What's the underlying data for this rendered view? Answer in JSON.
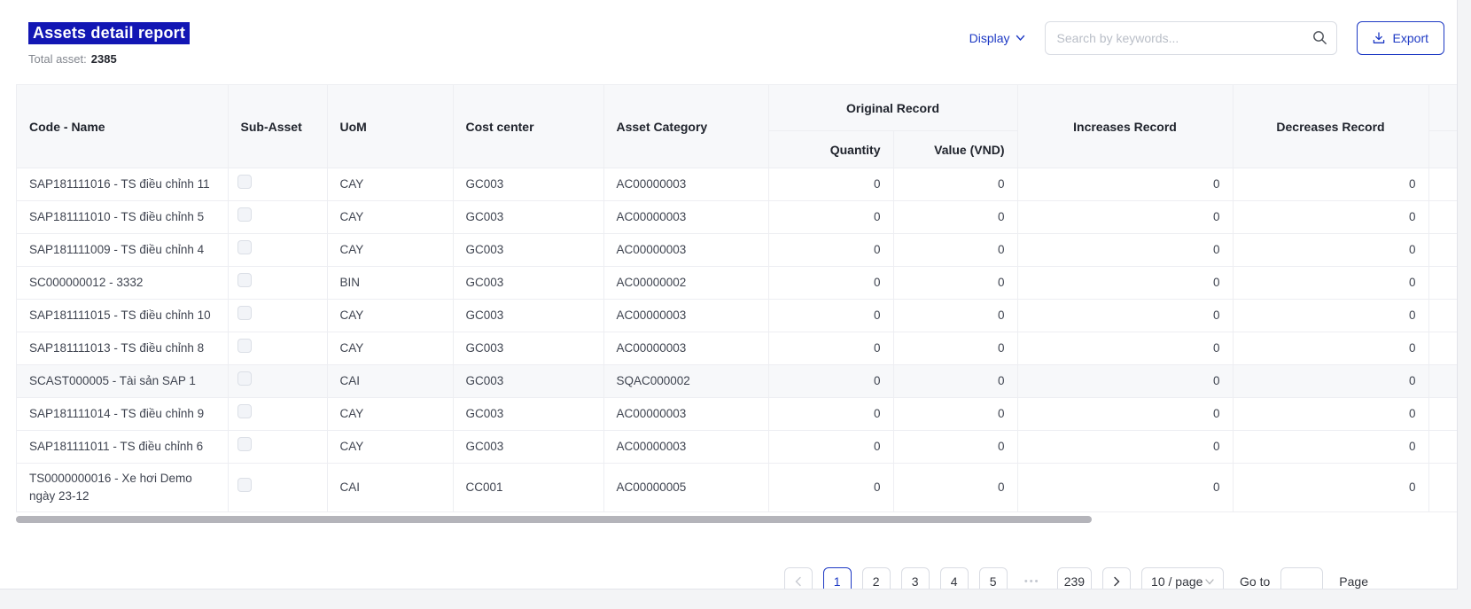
{
  "header": {
    "title": "Assets detail report",
    "total_label": "Total asset:",
    "total_value": "2385",
    "display_label": "Display",
    "search_placeholder": "Search by keywords...",
    "export_label": "Export"
  },
  "colors": {
    "accent": "#1d39c4",
    "title_selection_bg": "#1216b4",
    "table_header_bg": "#f7f8fa",
    "page_bg": "#f3f4f6"
  },
  "table": {
    "headers": {
      "code_name": "Code - Name",
      "sub_asset": "Sub-Asset",
      "uom": "UoM",
      "cost_center": "Cost center",
      "asset_category": "Asset Category",
      "original_record": "Original Record",
      "quantity": "Quantity",
      "value_vnd": "Value (VND)",
      "increases_record": "Increases Record",
      "decreases_record": "Decreases Record"
    },
    "rows": [
      {
        "code_name": "SAP181111016 - TS điều chỉnh 11",
        "sub_asset_checked": false,
        "uom": "CAY",
        "cost_center": "GC003",
        "asset_category": "AC00000003",
        "quantity": "0",
        "value_vnd": "0",
        "increases": "0",
        "decreases": "0",
        "highlighted": false
      },
      {
        "code_name": "SAP181111010 - TS điều chỉnh 5",
        "sub_asset_checked": false,
        "uom": "CAY",
        "cost_center": "GC003",
        "asset_category": "AC00000003",
        "quantity": "0",
        "value_vnd": "0",
        "increases": "0",
        "decreases": "0",
        "highlighted": false
      },
      {
        "code_name": "SAP181111009 - TS điều chỉnh 4",
        "sub_asset_checked": false,
        "uom": "CAY",
        "cost_center": "GC003",
        "asset_category": "AC00000003",
        "quantity": "0",
        "value_vnd": "0",
        "increases": "0",
        "decreases": "0",
        "highlighted": false
      },
      {
        "code_name": "SC000000012 - 3332",
        "sub_asset_checked": false,
        "uom": "BIN",
        "cost_center": "GC003",
        "asset_category": "AC00000002",
        "quantity": "0",
        "value_vnd": "0",
        "increases": "0",
        "decreases": "0",
        "highlighted": false
      },
      {
        "code_name": "SAP181111015 - TS điều chỉnh 10",
        "sub_asset_checked": false,
        "uom": "CAY",
        "cost_center": "GC003",
        "asset_category": "AC00000003",
        "quantity": "0",
        "value_vnd": "0",
        "increases": "0",
        "decreases": "0",
        "highlighted": false
      },
      {
        "code_name": "SAP181111013 - TS điều chỉnh 8",
        "sub_asset_checked": false,
        "uom": "CAY",
        "cost_center": "GC003",
        "asset_category": "AC00000003",
        "quantity": "0",
        "value_vnd": "0",
        "increases": "0",
        "decreases": "0",
        "highlighted": false
      },
      {
        "code_name": "SCAST000005 - Tài sản SAP 1",
        "sub_asset_checked": false,
        "uom": "CAI",
        "cost_center": "GC003",
        "asset_category": "SQAC000002",
        "quantity": "0",
        "value_vnd": "0",
        "increases": "0",
        "decreases": "0",
        "highlighted": true
      },
      {
        "code_name": "SAP181111014 - TS điều chỉnh 9",
        "sub_asset_checked": false,
        "uom": "CAY",
        "cost_center": "GC003",
        "asset_category": "AC00000003",
        "quantity": "0",
        "value_vnd": "0",
        "increases": "0",
        "decreases": "0",
        "highlighted": false
      },
      {
        "code_name": "SAP181111011 - TS điều chỉnh 6",
        "sub_asset_checked": false,
        "uom": "CAY",
        "cost_center": "GC003",
        "asset_category": "AC00000003",
        "quantity": "0",
        "value_vnd": "0",
        "increases": "0",
        "decreases": "0",
        "highlighted": false
      },
      {
        "code_name": "TS0000000016 - Xe hơi Demo ngày 23-12",
        "sub_asset_checked": false,
        "uom": "CAI",
        "cost_center": "CC001",
        "asset_category": "AC00000005",
        "quantity": "0",
        "value_vnd": "0",
        "increases": "0",
        "decreases": "0",
        "highlighted": false
      }
    ]
  },
  "pagination": {
    "pages": [
      "1",
      "2",
      "3",
      "4",
      "5"
    ],
    "active_page": "1",
    "ellipsis": "•••",
    "jump_page": "239",
    "page_size": "10 / page",
    "goto_label": "Go to",
    "goto_value": "",
    "page_label": "Page"
  }
}
